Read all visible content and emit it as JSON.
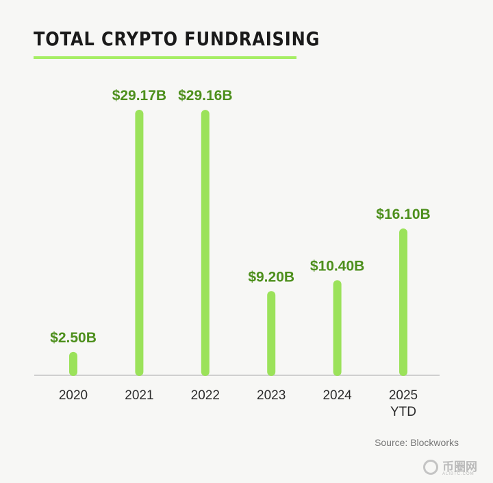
{
  "header": {
    "title": "TOTAL CRYPTO FUNDRAISING"
  },
  "footer": {
    "source": "Source: Blockworks"
  },
  "watermark": {
    "text": "币圈网",
    "subtext": "ALIBTC.COM"
  },
  "colors": {
    "bar": "#9be25a",
    "value_label": "#4d8f1c",
    "axis": "#cfcfcf",
    "tick_label": "#2b2b2b",
    "accent_underline": "#a6ee64"
  },
  "chart_data": {
    "type": "bar",
    "title": "TOTAL CRYPTO FUNDRAISING",
    "categories": [
      [
        "2020"
      ],
      [
        "2021"
      ],
      [
        "2022"
      ],
      [
        "2023"
      ],
      [
        "2024"
      ],
      [
        "2025",
        "YTD"
      ]
    ],
    "values": [
      2.5,
      29.17,
      29.16,
      9.2,
      10.4,
      16.1
    ],
    "value_labels": [
      "$2.50B",
      "$29.17B",
      "$29.16B",
      "$9.20B",
      "$10.40B",
      "$16.10B"
    ],
    "xlabel": "",
    "ylabel": "",
    "ylim": [
      0,
      29.17
    ],
    "grid": false,
    "legend": "none"
  }
}
